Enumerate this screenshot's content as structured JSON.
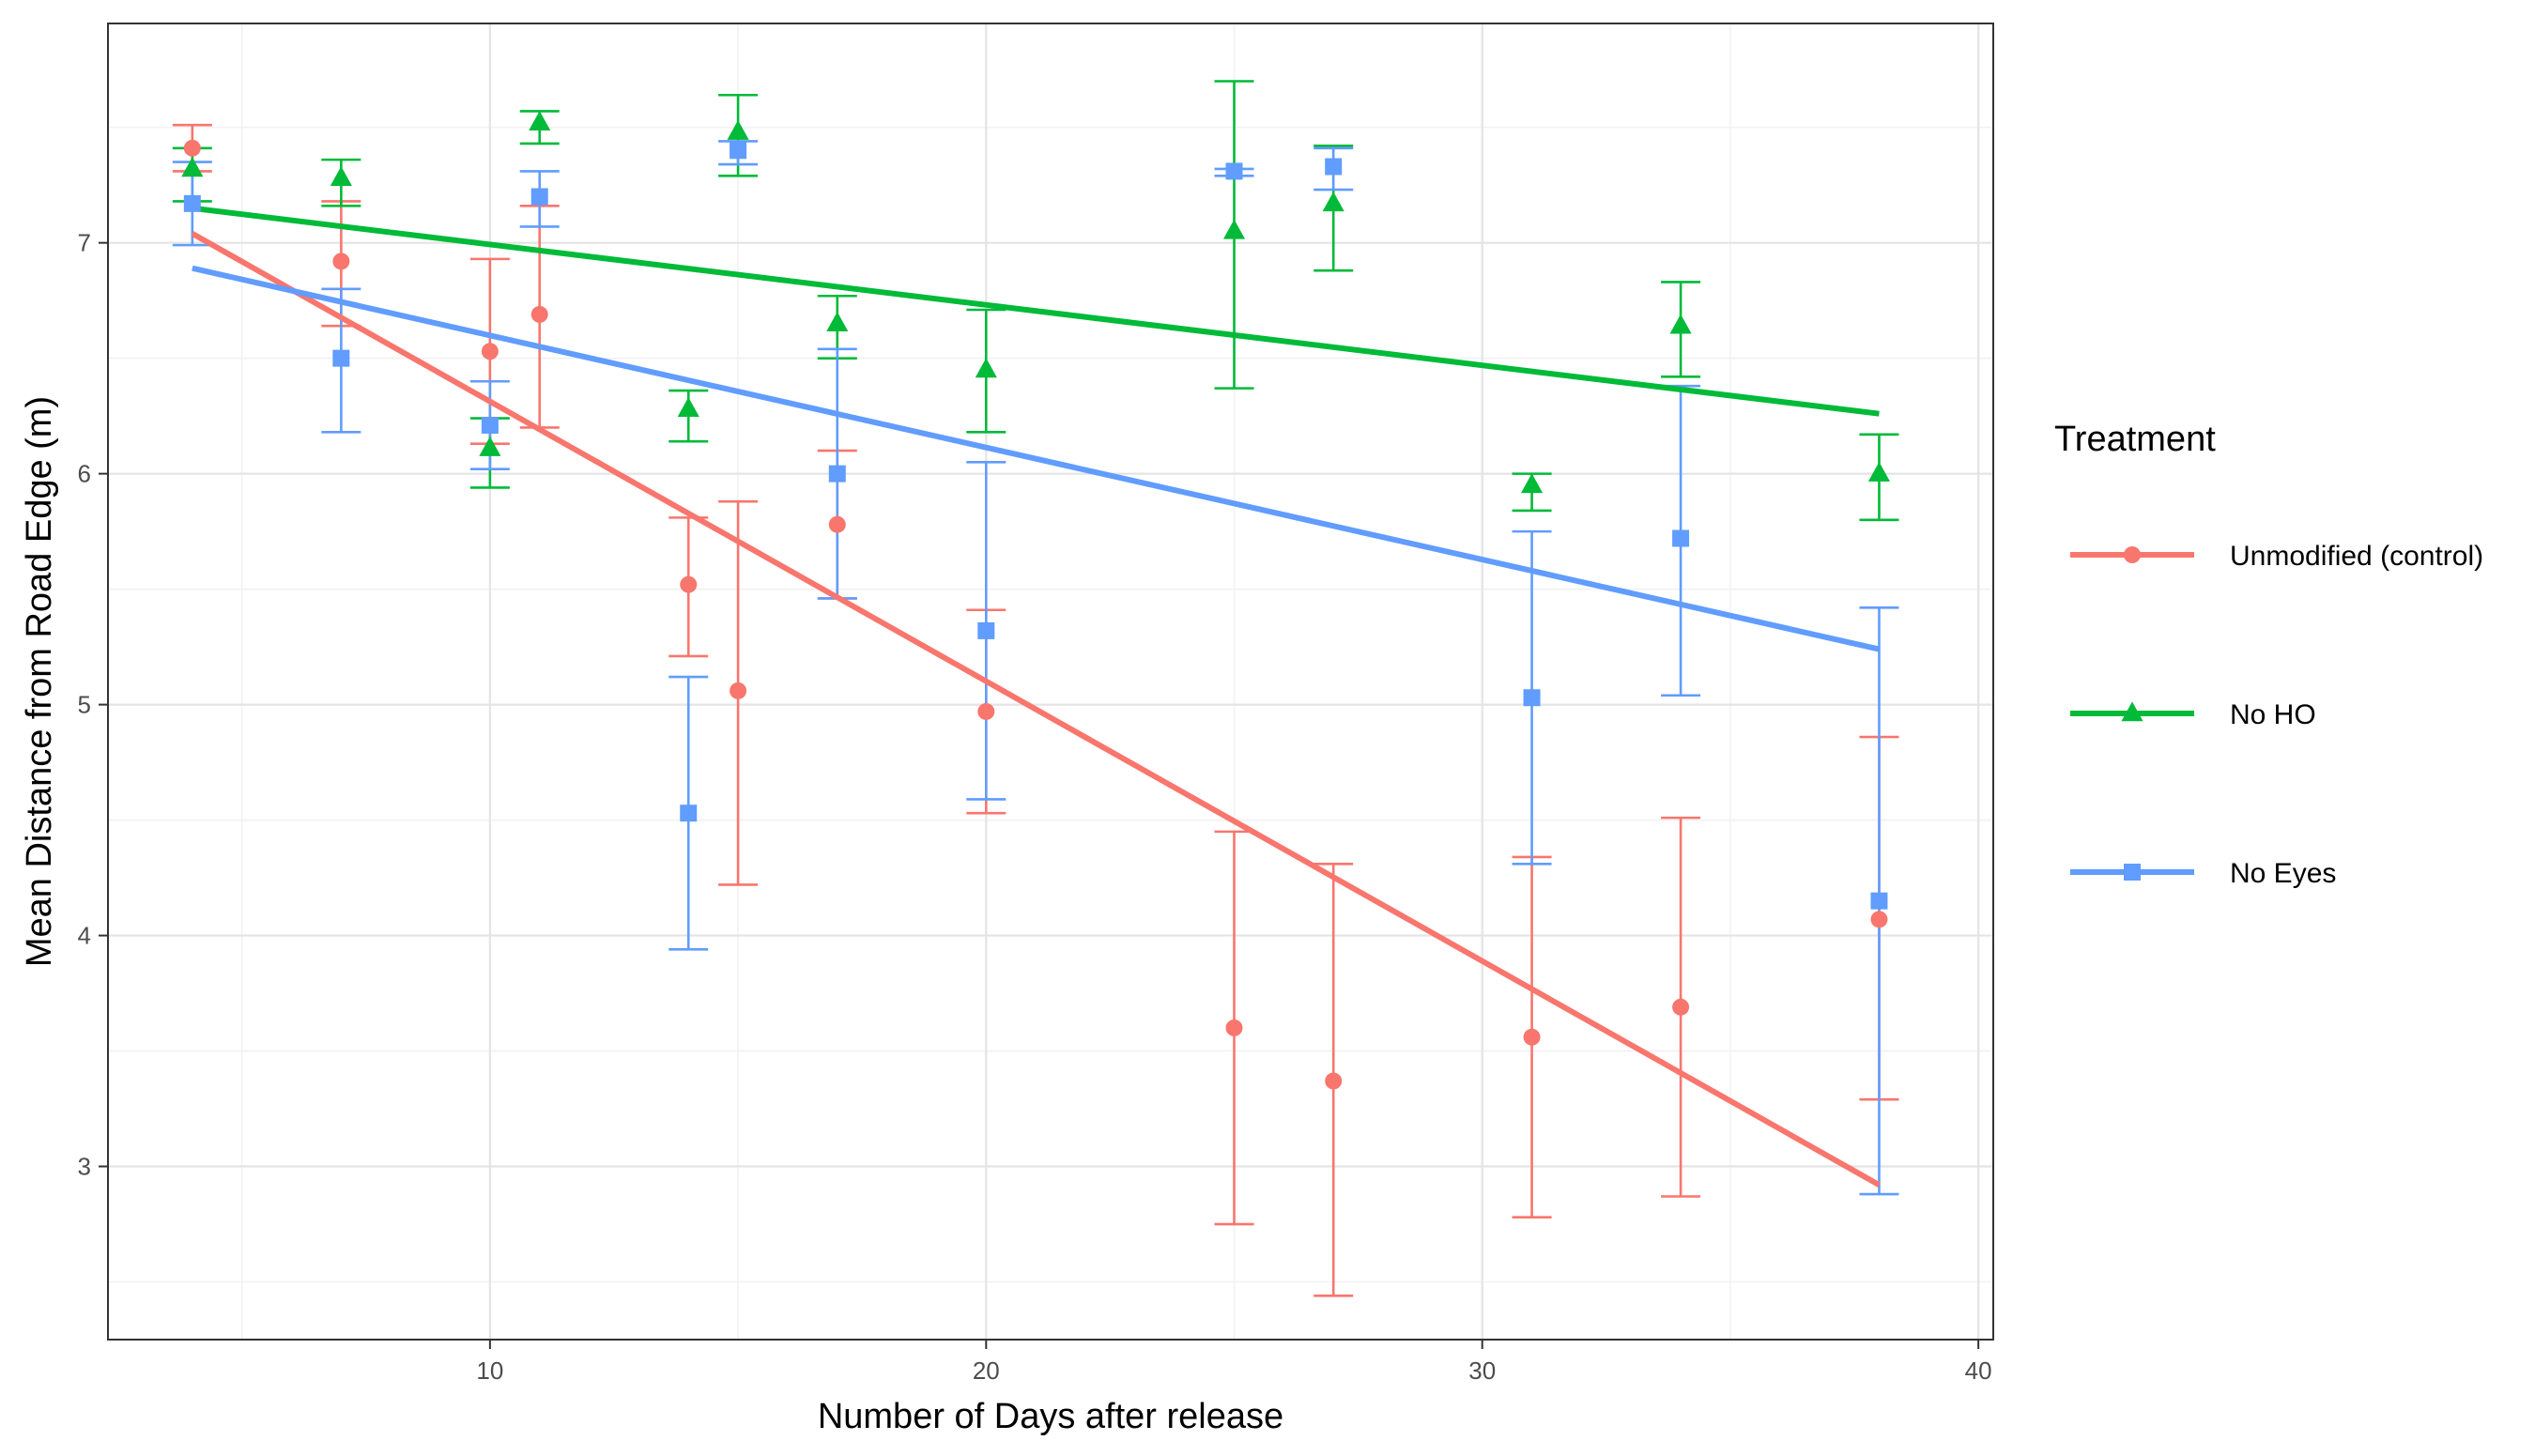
{
  "chart_data": {
    "type": "scatter",
    "title": "",
    "xlabel": "Number of Days after release",
    "ylabel": "Mean Distance from Road Edge (m)",
    "xlim": [
      2.3,
      40.3
    ],
    "ylim": [
      2.25,
      7.95
    ],
    "x_ticks": [
      10,
      20,
      30,
      40
    ],
    "y_ticks": [
      3,
      4,
      5,
      6,
      7
    ],
    "legend_title": "Treatment",
    "series": [
      {
        "name": "Unmodified (control)",
        "color": "#f8766d",
        "marker": "circle",
        "points": [
          {
            "x": 4,
            "y": 7.41,
            "lo": 7.31,
            "hi": 7.51
          },
          {
            "x": 7,
            "y": 6.92,
            "lo": 6.64,
            "hi": 7.18
          },
          {
            "x": 10,
            "y": 6.53,
            "lo": 6.13,
            "hi": 6.93
          },
          {
            "x": 11,
            "y": 6.69,
            "lo": 6.2,
            "hi": 7.16
          },
          {
            "x": 14,
            "y": 5.52,
            "lo": 5.21,
            "hi": 5.81
          },
          {
            "x": 15,
            "y": 5.06,
            "lo": 4.22,
            "hi": 5.88
          },
          {
            "x": 17,
            "y": 5.78,
            "lo": 5.46,
            "hi": 6.1
          },
          {
            "x": 20,
            "y": 4.97,
            "lo": 4.53,
            "hi": 5.41
          },
          {
            "x": 25,
            "y": 3.6,
            "lo": 2.75,
            "hi": 4.45
          },
          {
            "x": 27,
            "y": 3.37,
            "lo": 2.44,
            "hi": 4.31
          },
          {
            "x": 31,
            "y": 3.56,
            "lo": 2.78,
            "hi": 4.34
          },
          {
            "x": 34,
            "y": 3.69,
            "lo": 2.87,
            "hi": 4.51
          },
          {
            "x": 38,
            "y": 4.07,
            "lo": 3.29,
            "hi": 4.86
          }
        ],
        "trend": {
          "x0": 4,
          "y0": 7.04,
          "x1": 38,
          "y1": 2.92
        }
      },
      {
        "name": "No HO",
        "color": "#00ba38",
        "marker": "triangle",
        "points": [
          {
            "x": 4,
            "y": 7.32,
            "lo": 7.18,
            "hi": 7.41
          },
          {
            "x": 7,
            "y": 7.28,
            "lo": 7.16,
            "hi": 7.36
          },
          {
            "x": 10,
            "y": 6.11,
            "lo": 5.94,
            "hi": 6.24
          },
          {
            "x": 11,
            "y": 7.52,
            "lo": 7.43,
            "hi": 7.57
          },
          {
            "x": 14,
            "y": 6.28,
            "lo": 6.14,
            "hi": 6.36
          },
          {
            "x": 15,
            "y": 7.48,
            "lo": 7.29,
            "hi": 7.64
          },
          {
            "x": 17,
            "y": 6.65,
            "lo": 6.5,
            "hi": 6.77
          },
          {
            "x": 20,
            "y": 6.45,
            "lo": 6.18,
            "hi": 6.71
          },
          {
            "x": 25,
            "y": 7.05,
            "lo": 6.37,
            "hi": 7.7
          },
          {
            "x": 27,
            "y": 7.17,
            "lo": 6.88,
            "hi": 7.42
          },
          {
            "x": 31,
            "y": 5.95,
            "lo": 5.84,
            "hi": 6.0
          },
          {
            "x": 34,
            "y": 6.64,
            "lo": 6.42,
            "hi": 6.83
          },
          {
            "x": 38,
            "y": 6.0,
            "lo": 5.8,
            "hi": 6.17
          }
        ],
        "trend": {
          "x0": 4,
          "y0": 7.15,
          "x1": 38,
          "y1": 6.26
        }
      },
      {
        "name": "No Eyes",
        "color": "#619cff",
        "marker": "square",
        "points": [
          {
            "x": 4,
            "y": 7.17,
            "lo": 6.99,
            "hi": 7.35
          },
          {
            "x": 7,
            "y": 6.5,
            "lo": 6.18,
            "hi": 6.8
          },
          {
            "x": 10,
            "y": 6.21,
            "lo": 6.02,
            "hi": 6.4
          },
          {
            "x": 11,
            "y": 7.2,
            "lo": 7.07,
            "hi": 7.31
          },
          {
            "x": 14,
            "y": 4.53,
            "lo": 3.94,
            "hi": 5.12
          },
          {
            "x": 15,
            "y": 7.4,
            "lo": 7.34,
            "hi": 7.44
          },
          {
            "x": 17,
            "y": 6.0,
            "lo": 5.46,
            "hi": 6.54
          },
          {
            "x": 20,
            "y": 5.32,
            "lo": 4.59,
            "hi": 6.05
          },
          {
            "x": 25,
            "y": 7.31,
            "lo": 7.29,
            "hi": 7.32
          },
          {
            "x": 27,
            "y": 7.33,
            "lo": 7.23,
            "hi": 7.41
          },
          {
            "x": 31,
            "y": 5.03,
            "lo": 4.31,
            "hi": 5.75
          },
          {
            "x": 34,
            "y": 5.72,
            "lo": 5.04,
            "hi": 6.38
          },
          {
            "x": 38,
            "y": 4.15,
            "lo": 2.88,
            "hi": 5.42
          }
        ],
        "trend": {
          "x0": 4,
          "y0": 6.89,
          "x1": 38,
          "y1": 5.24
        }
      }
    ]
  }
}
